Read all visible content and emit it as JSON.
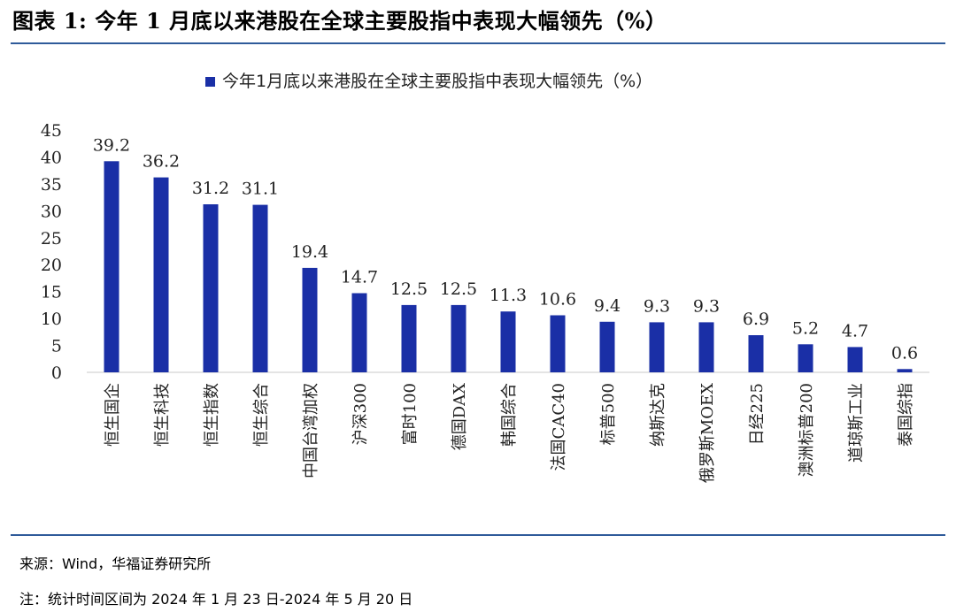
{
  "page": {
    "title": "图表 1: 今年 1 月底以来港股在全球主要股指中表现大幅领先（%）",
    "source": "来源：Wind，华福证券研究所",
    "note": "注：统计时间区间为 2024 年 1 月 23 日-2024 年 5 月 20 日"
  },
  "colors": {
    "bar": "#1a2fa6",
    "rule": "#2f5b9a",
    "axis": "#c8c8c8"
  },
  "chart_data": {
    "type": "bar",
    "title": "",
    "legend": {
      "position": "top",
      "entries": [
        "今年1月底以来港股在全球主要股指中表现大幅领先（%）"
      ]
    },
    "categories": [
      "恒生国企",
      "恒生科技",
      "恒生指数",
      "恒生综合",
      "中国台湾加权",
      "沪深300",
      "富时100",
      "德国DAX",
      "韩国综合",
      "法国CAC40",
      "标普500",
      "纳斯达克",
      "俄罗斯MOEX",
      "日经225",
      "澳洲标普200",
      "道琼斯工业",
      "泰国综指"
    ],
    "series": [
      {
        "name": "今年1月底以来港股在全球主要股指中表现大幅领先（%）",
        "values": [
          39.2,
          36.2,
          31.2,
          31.1,
          19.4,
          14.7,
          12.5,
          12.5,
          11.3,
          10.6,
          9.4,
          9.3,
          9.3,
          6.9,
          5.2,
          4.7,
          0.6
        ]
      }
    ],
    "data_labels": [
      "39.2",
      "36.2",
      "31.2",
      "31.1",
      "19.4",
      "14.7",
      "12.5",
      "12.5",
      "11.3",
      "10.6",
      "9.4",
      "9.3",
      "9.3",
      "6.9",
      "5.2",
      "4.7",
      "0.6"
    ],
    "yticks": [
      0,
      5,
      10,
      15,
      20,
      25,
      30,
      35,
      40,
      45
    ],
    "ylim": [
      0,
      45
    ],
    "xlabel": "",
    "ylabel": "",
    "grid": false
  }
}
